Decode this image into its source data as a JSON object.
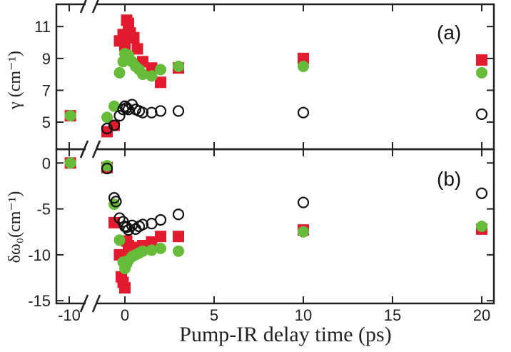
{
  "chart_data": [
    {
      "type": "scatter",
      "panel_label": "(a)",
      "ylabel": "γ (cm⁻¹)",
      "xlabel": "Pump-IR delay time (ps)",
      "xlim": [
        -11,
        21
      ],
      "ylim": [
        3.3,
        12.4
      ],
      "y_ticks": [
        5,
        7,
        9,
        11
      ],
      "x_ticks": [
        -10,
        0,
        5,
        10,
        15,
        20
      ],
      "axis_break_x": "between -10 and 0",
      "series": [
        {
          "marker": "filled-square",
          "color": "#e31b2e",
          "x": [
            -9.8,
            -1.0,
            -0.6,
            -0.3,
            -0.1,
            0.0,
            0.1,
            0.2,
            0.3,
            0.5,
            0.7,
            1.0,
            1.5,
            2.0,
            3.0,
            10.0,
            20.0
          ],
          "y": [
            5.4,
            4.4,
            4.8,
            10.1,
            10.5,
            9.8,
            11.4,
            11.2,
            10.6,
            10.3,
            9.6,
            8.8,
            8.4,
            7.5,
            8.4,
            9.0,
            8.9
          ]
        },
        {
          "marker": "filled-circle",
          "color": "#66bb3a",
          "x": [
            -9.8,
            -1.0,
            -0.6,
            -0.3,
            -0.1,
            0.0,
            0.1,
            0.2,
            0.4,
            0.6,
            0.8,
            1.0,
            1.5,
            2.0,
            3.0,
            10.0,
            20.0
          ],
          "y": [
            5.4,
            5.3,
            6.0,
            8.1,
            8.8,
            9.3,
            9.0,
            9.2,
            8.8,
            8.5,
            8.3,
            8.0,
            7.9,
            8.3,
            8.5,
            8.5,
            8.1
          ]
        },
        {
          "marker": "open-circle",
          "color": "#111111",
          "x": [
            -1.0,
            -0.6,
            -0.3,
            -0.1,
            0.0,
            0.1,
            0.2,
            0.4,
            0.6,
            0.8,
            1.0,
            1.5,
            2.0,
            3.0,
            10.0,
            20.0
          ],
          "y": [
            4.6,
            4.8,
            5.4,
            5.8,
            6.0,
            5.9,
            5.8,
            6.1,
            5.8,
            5.7,
            5.6,
            5.6,
            5.7,
            5.7,
            5.6,
            5.5
          ]
        }
      ]
    },
    {
      "type": "scatter",
      "panel_label": "(b)",
      "ylabel": "δω₀(cm⁻¹)",
      "xlabel": "Pump-IR delay time (ps)",
      "xlim": [
        -11,
        21
      ],
      "ylim": [
        -15.3,
        1.5
      ],
      "y_ticks": [
        0,
        -5,
        -10,
        -15
      ],
      "x_ticks": [
        -10,
        0,
        5,
        10,
        15,
        20
      ],
      "axis_break_x": "between -10 and 0",
      "series": [
        {
          "marker": "filled-square",
          "color": "#e31b2e",
          "x": [
            -9.8,
            -1.0,
            -0.6,
            -0.3,
            -0.2,
            -0.1,
            0.0,
            0.1,
            0.2,
            0.3,
            0.5,
            0.7,
            1.0,
            1.5,
            2.0,
            3.0,
            10.0,
            20.0
          ],
          "y": [
            0.0,
            -0.5,
            -6.5,
            -10.0,
            -12.4,
            -13.0,
            -13.6,
            -8.5,
            -9.0,
            -10.0,
            -9.5,
            -9.2,
            -9.0,
            -8.6,
            -8.0,
            -8.0,
            -7.3,
            -7.2
          ]
        },
        {
          "marker": "filled-circle",
          "color": "#66bb3a",
          "x": [
            -9.8,
            -1.0,
            -0.6,
            -0.3,
            -0.1,
            0.0,
            0.1,
            0.2,
            0.4,
            0.6,
            0.8,
            1.0,
            1.5,
            2.0,
            3.0,
            10.0,
            20.0
          ],
          "y": [
            0.0,
            -0.3,
            -4.5,
            -8.4,
            -10.8,
            -11.5,
            -11.0,
            -10.6,
            -10.2,
            -10.0,
            -9.8,
            -9.6,
            -9.5,
            -9.3,
            -9.6,
            -7.5,
            -6.9
          ]
        },
        {
          "marker": "open-circle",
          "color": "#111111",
          "x": [
            -1.0,
            -0.6,
            -0.5,
            -0.3,
            -0.1,
            0.0,
            0.1,
            0.2,
            0.4,
            0.6,
            0.8,
            1.0,
            1.5,
            2.0,
            3.0,
            10.0,
            20.0
          ],
          "y": [
            -0.6,
            -3.8,
            -4.2,
            -6.0,
            -6.4,
            -6.9,
            -7.0,
            -7.3,
            -6.8,
            -7.2,
            -6.9,
            -6.7,
            -6.6,
            -6.2,
            -5.6,
            -4.3,
            -3.3
          ]
        }
      ]
    }
  ]
}
